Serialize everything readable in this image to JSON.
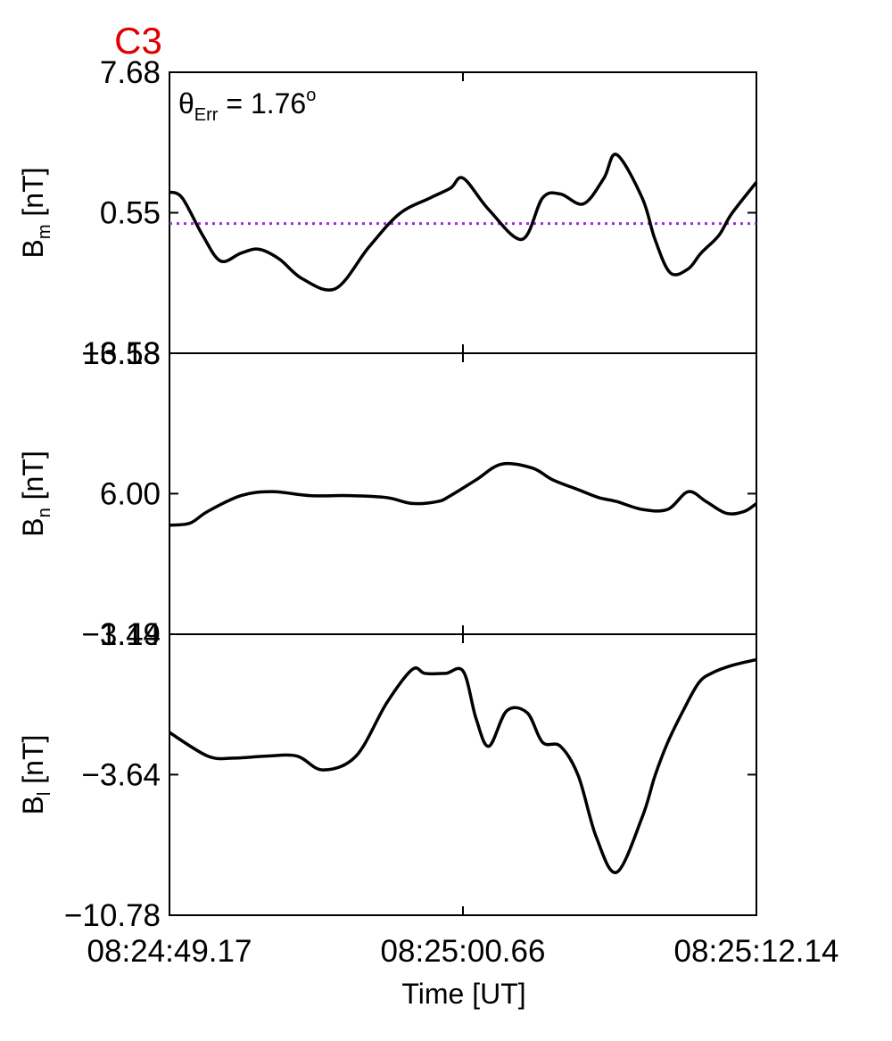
{
  "panel_label": "C3",
  "annotation": {
    "prefix": "θ",
    "sub": "Err",
    "eq": " =  1.76",
    "sup": "o"
  },
  "xlabel": "Time [UT]",
  "colors": {
    "curve": "#000000",
    "reference": "#9b30d9",
    "label": "#e00000"
  },
  "chart_data": {
    "type": "line",
    "x_ticks": [
      "08:24:49.17",
      "08:25:00.66",
      "08:25:12.14"
    ],
    "x_range_seconds": [
      0,
      22.97
    ],
    "panels": [
      {
        "id": "bm",
        "ylabel_main": "B",
        "ylabel_sub": "m",
        "ylabel_unit": " [nT]",
        "ylim": [
          -6.58,
          7.68
        ],
        "yticks": [
          "7.68",
          "0.55",
          "−6.58"
        ],
        "ytick_values": [
          7.68,
          0.55,
          -6.58
        ],
        "reference_line": 0.0,
        "x": [
          0,
          0.5,
          1.3,
          2.0,
          2.8,
          3.5,
          4.3,
          5.2,
          6.5,
          7.8,
          9.0,
          10.2,
          11.0,
          11.5,
          12.5,
          13.8,
          14.6,
          15.3,
          16.2,
          17.0,
          17.5,
          18.5,
          19.0,
          19.6,
          20.3,
          20.8,
          21.5,
          22.0,
          22.97
        ],
        "y": [
          1.6,
          1.3,
          -0.6,
          -1.9,
          -1.5,
          -1.3,
          -1.8,
          -2.8,
          -3.3,
          -1.2,
          0.5,
          1.3,
          1.8,
          2.3,
          0.7,
          -0.8,
          1.3,
          1.5,
          1.0,
          2.3,
          3.5,
          1.3,
          -0.8,
          -2.5,
          -2.3,
          -1.5,
          -0.6,
          0.5,
          2.1
        ]
      },
      {
        "id": "bn",
        "ylabel_main": "B",
        "ylabel_sub": "n",
        "ylabel_unit": " [nT]",
        "ylim": [
          -1.14,
          13.13
        ],
        "yticks": [
          "13.13",
          "6.00",
          "−1.14"
        ],
        "ytick_values": [
          13.13,
          6.0,
          -1.14
        ],
        "x": [
          0,
          0.8,
          1.5,
          2.8,
          4.0,
          5.5,
          7.0,
          8.5,
          9.5,
          10.5,
          11.0,
          12.0,
          13.0,
          14.2,
          15.0,
          16.0,
          16.8,
          17.5,
          18.5,
          19.5,
          20.3,
          21.0,
          21.8,
          22.5,
          22.97
        ],
        "y": [
          4.4,
          4.5,
          5.1,
          5.9,
          6.1,
          5.9,
          5.9,
          5.8,
          5.5,
          5.6,
          5.9,
          6.7,
          7.5,
          7.3,
          6.7,
          6.2,
          5.8,
          5.6,
          5.2,
          5.2,
          6.1,
          5.6,
          5.0,
          5.1,
          5.5
        ]
      },
      {
        "id": "bl",
        "ylabel_main": "B",
        "ylabel_sub": "l",
        "ylabel_unit": " [nT]",
        "ylim": [
          -10.78,
          3.49
        ],
        "yticks": [
          "3.49",
          "−3.64",
          "−10.78"
        ],
        "ytick_values": [
          3.49,
          -3.64,
          -10.78
        ],
        "x": [
          0,
          1.5,
          2.5,
          3.8,
          5.0,
          6.0,
          7.3,
          8.5,
          9.5,
          10.0,
          10.8,
          11.5,
          12.0,
          12.5,
          13.2,
          14.0,
          14.6,
          15.3,
          16.0,
          16.7,
          17.5,
          18.5,
          19.0,
          19.5,
          20.1,
          20.7,
          21.2,
          22.0,
          22.97
        ],
        "y": [
          -1.5,
          -2.7,
          -2.8,
          -2.7,
          -2.7,
          -3.4,
          -2.7,
          0.0,
          1.7,
          1.5,
          1.5,
          1.6,
          -0.8,
          -2.2,
          -0.4,
          -0.5,
          -2.0,
          -2.2,
          -3.7,
          -6.8,
          -8.6,
          -5.8,
          -3.7,
          -2.0,
          -0.4,
          1.0,
          1.5,
          1.9,
          2.2
        ]
      }
    ]
  }
}
